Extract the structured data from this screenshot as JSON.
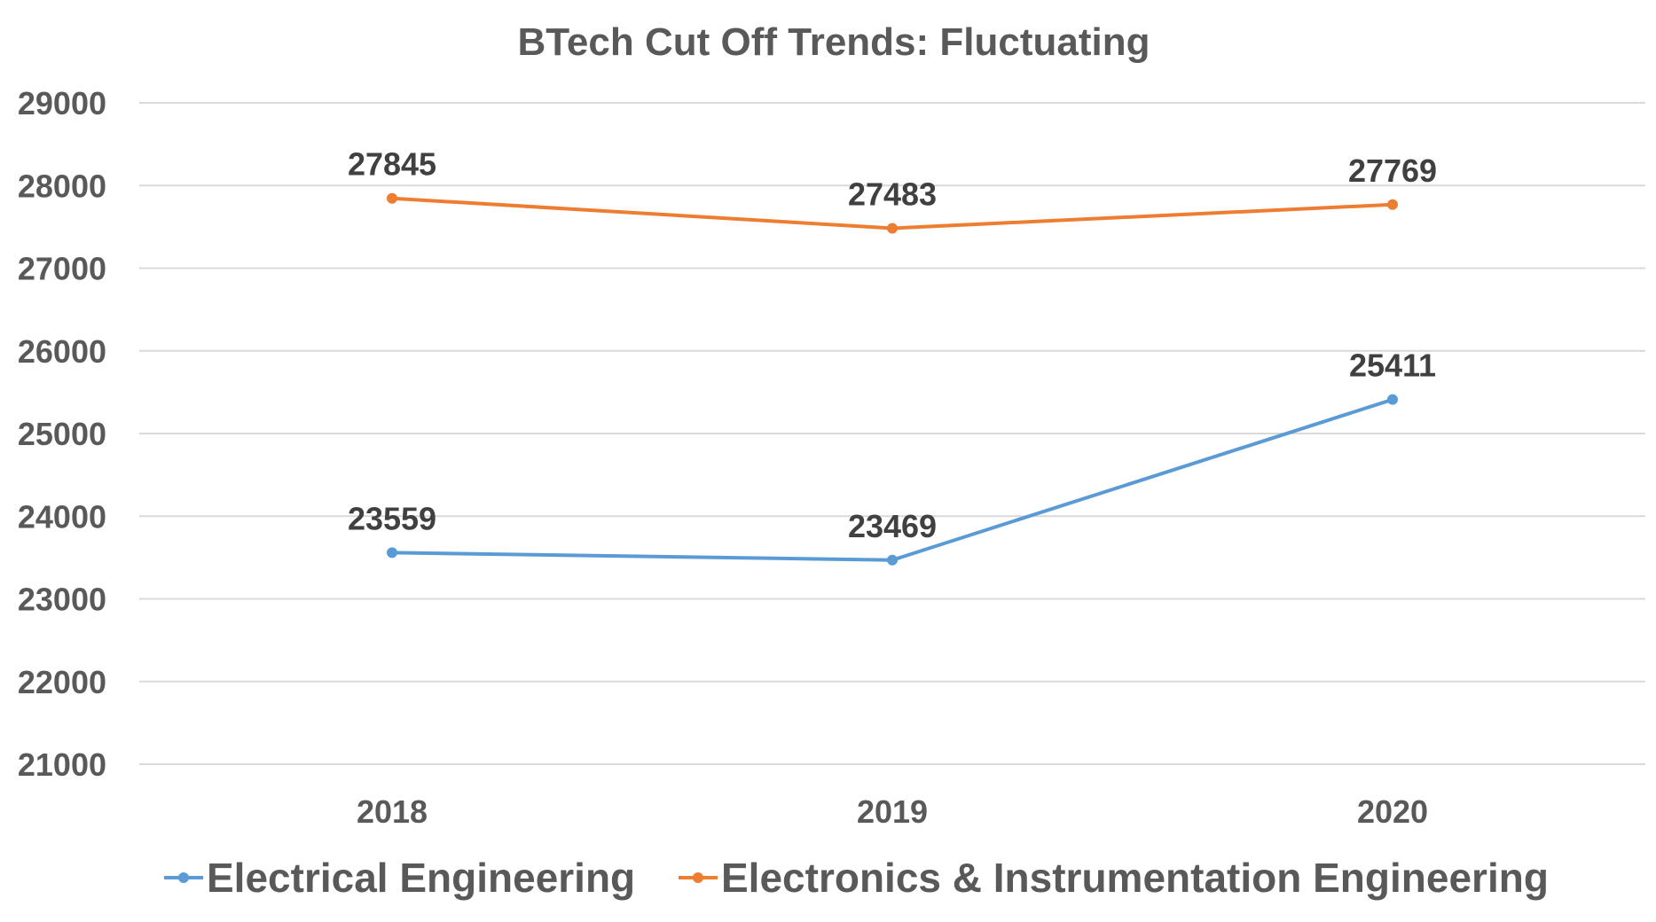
{
  "chart_data": {
    "type": "line",
    "title": "BTech Cut Off Trends: Fluctuating",
    "categories": [
      "2018",
      "2019",
      "2020"
    ],
    "ylim": [
      21000,
      29000
    ],
    "ytick_step": 1000,
    "grid": true,
    "legend_position": "bottom",
    "series": [
      {
        "name": "Electrical Engineering",
        "color": "#5b9bd5",
        "values": [
          23559,
          23469,
          25411
        ]
      },
      {
        "name": "Electronics & Instrumentation Engineering",
        "color": "#ed7d31",
        "values": [
          27845,
          27483,
          27769
        ]
      }
    ]
  }
}
